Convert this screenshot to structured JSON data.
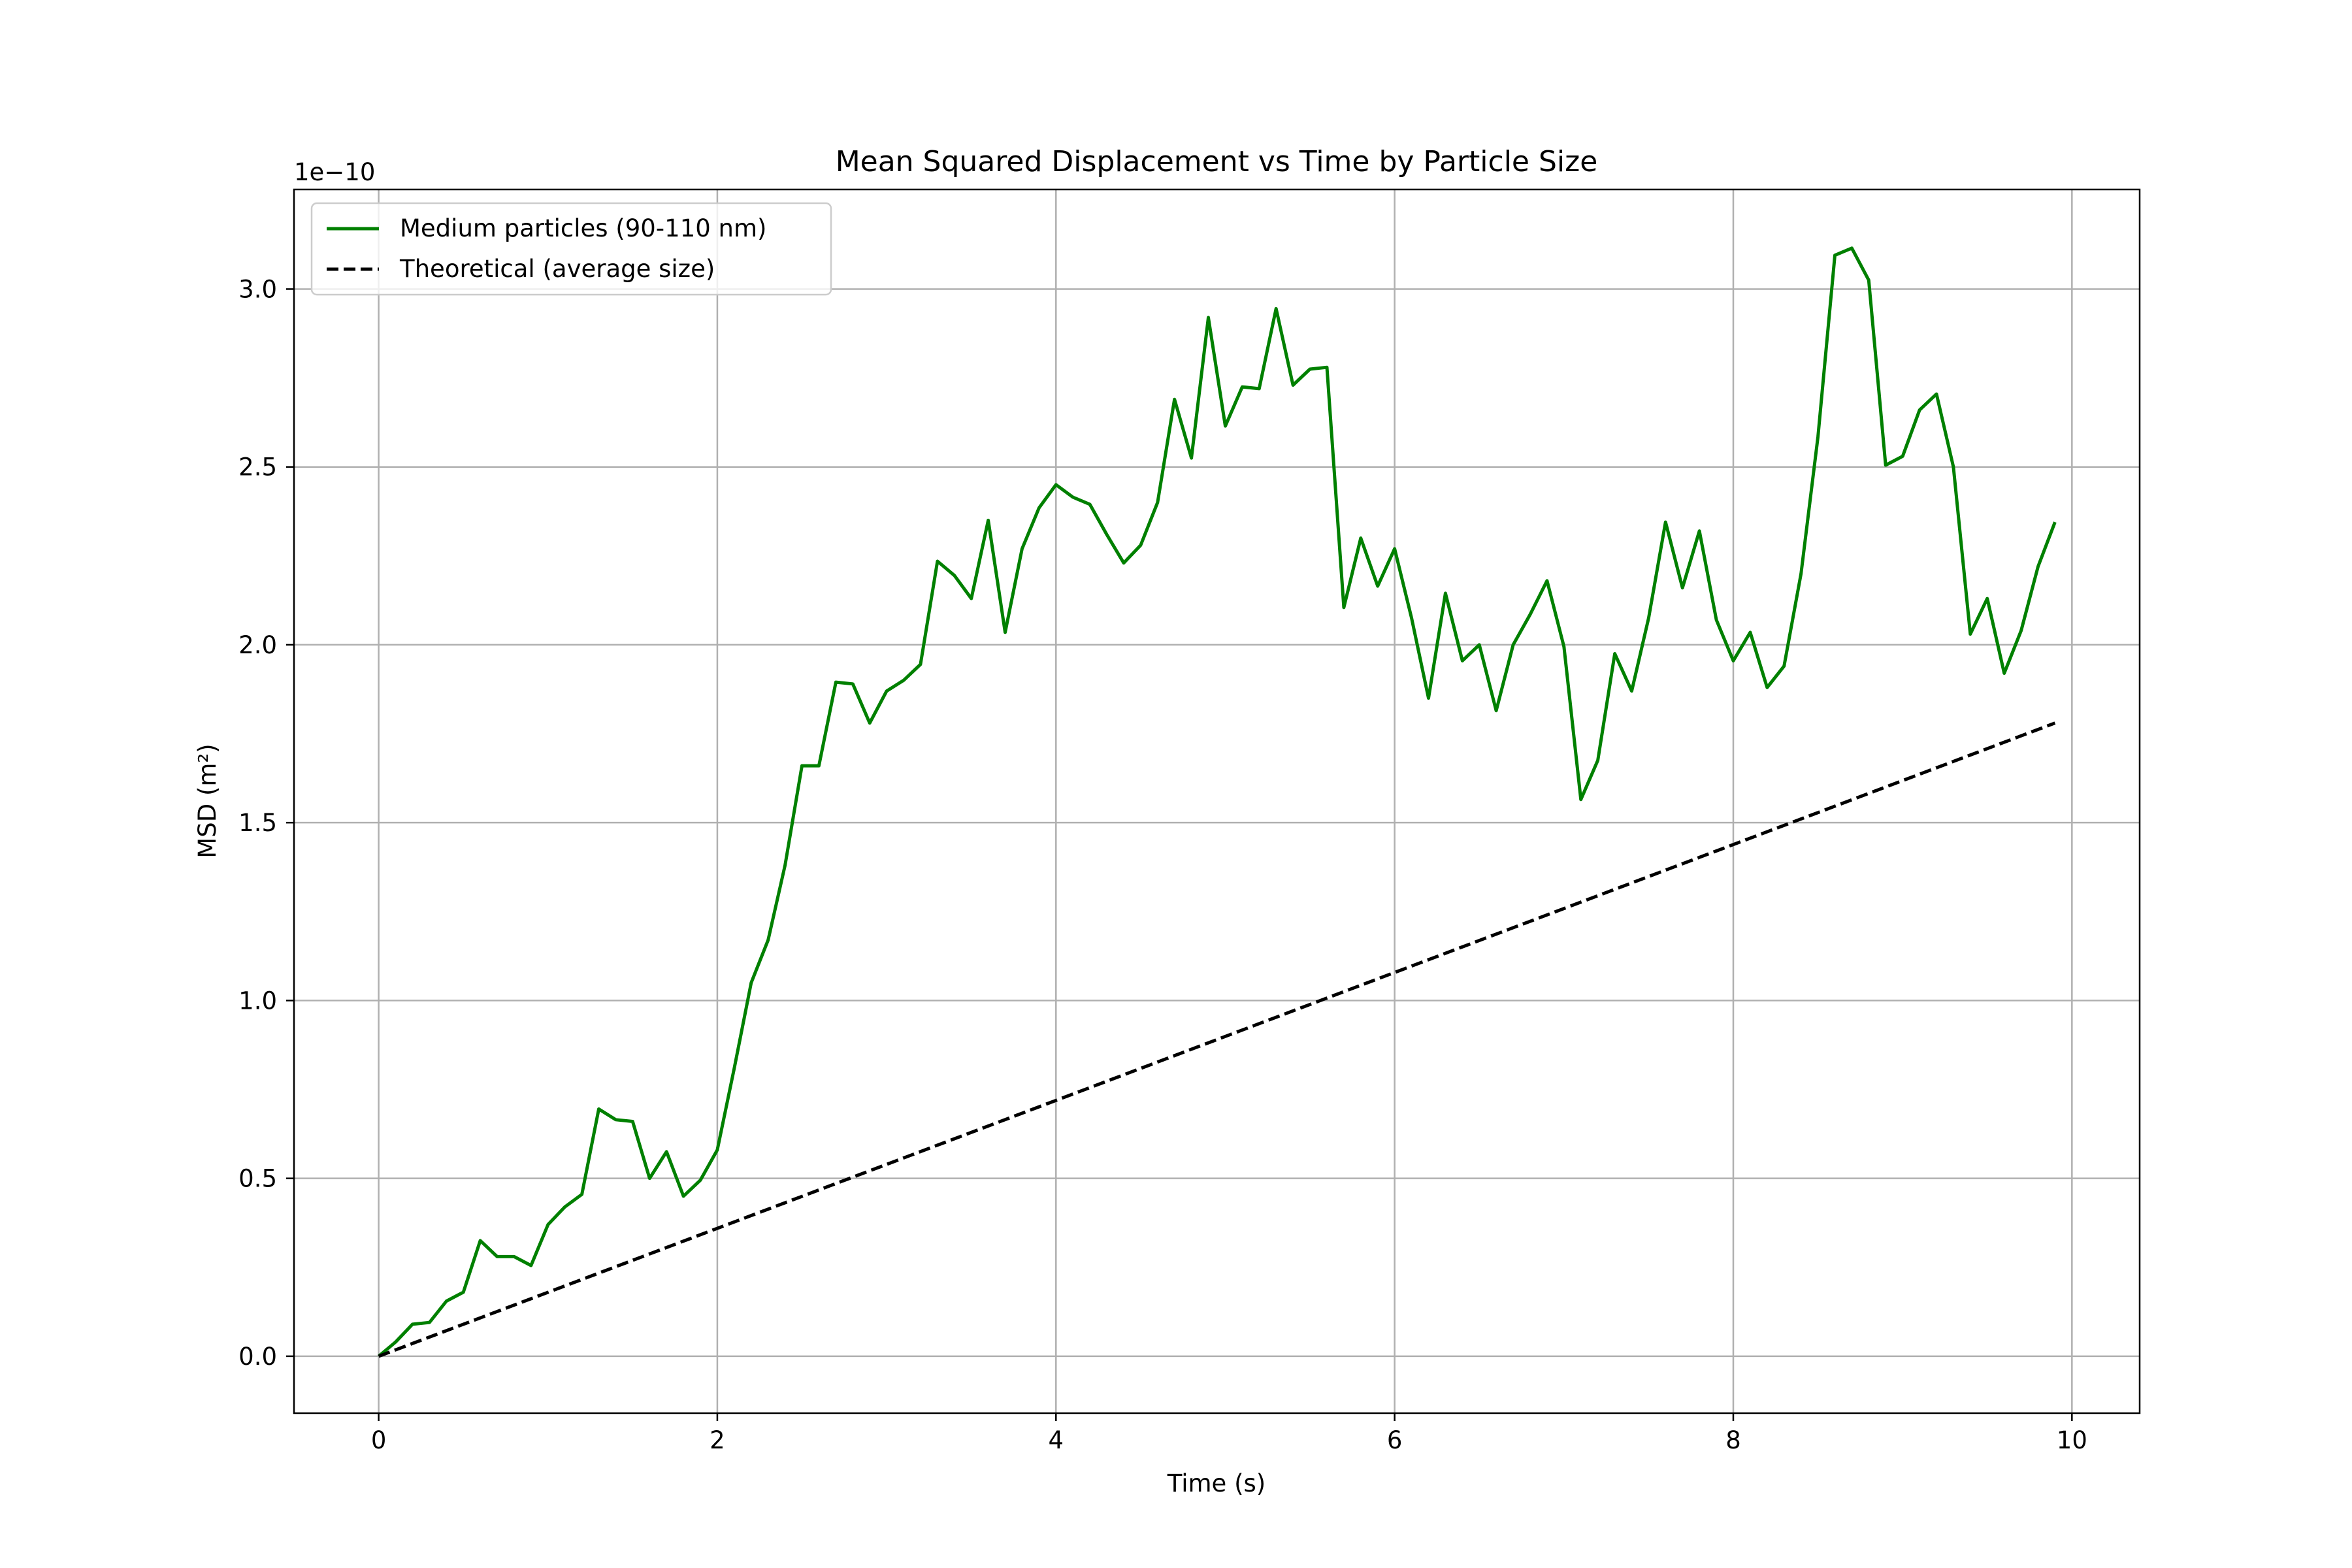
{
  "chart_data": {
    "type": "line",
    "title": "Mean Squared Displacement vs Time by Particle Size",
    "xlabel": "Time (s)",
    "ylabel": "MSD (m²)",
    "y_offset_label": "1e−10",
    "xlim": [
      -0.5,
      10.4
    ],
    "ylim": [
      -0.16,
      3.28
    ],
    "y_scale_factor": 1e-10,
    "xticks": [
      0,
      2,
      4,
      6,
      8,
      10
    ],
    "xtick_labels": [
      "0",
      "2",
      "4",
      "6",
      "8",
      "10"
    ],
    "yticks": [
      0,
      0.5,
      1.0,
      1.5,
      2.0,
      2.5,
      3.0
    ],
    "ytick_labels": [
      "0.0",
      "0.5",
      "1.0",
      "1.5",
      "2.0",
      "2.5",
      "3.0"
    ],
    "grid": true,
    "legend_position": "top-left",
    "series": [
      {
        "name": "Medium particles (90-110 nm)",
        "color": "#008000",
        "style": "solid",
        "x": [
          0,
          0.1,
          0.2,
          0.3,
          0.4,
          0.5,
          0.6,
          0.7,
          0.8,
          0.9,
          1.0,
          1.1,
          1.2,
          1.3,
          1.4,
          1.5,
          1.6,
          1.7,
          1.8,
          1.9,
          2.0,
          2.1,
          2.2,
          2.3,
          2.4,
          2.5,
          2.6,
          2.7,
          2.8,
          2.9,
          3.0,
          3.1,
          3.2,
          3.3,
          3.4,
          3.5,
          3.6,
          3.7,
          3.8,
          3.9,
          4.0,
          4.1,
          4.2,
          4.3,
          4.4,
          4.5,
          4.6,
          4.7,
          4.8,
          4.9,
          5.0,
          5.1,
          5.2,
          5.3,
          5.4,
          5.5,
          5.6,
          5.7,
          5.8,
          5.9,
          6.0,
          6.1,
          6.2,
          6.3,
          6.4,
          6.5,
          6.6,
          6.7,
          6.8,
          6.9,
          7.0,
          7.1,
          7.2,
          7.3,
          7.4,
          7.5,
          7.6,
          7.7,
          7.8,
          7.9,
          8.0,
          8.1,
          8.2,
          8.3,
          8.4,
          8.5,
          8.6,
          8.7,
          8.8,
          8.9,
          9.0,
          9.1,
          9.2,
          9.3,
          9.4,
          9.5,
          9.6,
          9.7,
          9.8,
          9.9
        ],
        "y": [
          0.0,
          0.04,
          0.09,
          0.095,
          0.155,
          0.18,
          0.325,
          0.28,
          0.28,
          0.255,
          0.37,
          0.42,
          0.455,
          0.695,
          0.665,
          0.66,
          0.5,
          0.575,
          0.45,
          0.495,
          0.58,
          0.81,
          1.05,
          1.17,
          1.38,
          1.66,
          1.66,
          1.895,
          1.89,
          1.78,
          1.87,
          1.9,
          1.945,
          2.235,
          2.195,
          2.13,
          2.35,
          2.035,
          2.27,
          2.385,
          2.45,
          2.415,
          2.395,
          2.31,
          2.23,
          2.28,
          2.4,
          2.69,
          2.525,
          2.92,
          2.615,
          2.725,
          2.72,
          2.945,
          2.73,
          2.775,
          2.78,
          2.105,
          2.3,
          2.165,
          2.27,
          2.075,
          1.85,
          2.145,
          1.955,
          2.0,
          1.815,
          2.0,
          2.085,
          2.18,
          1.995,
          1.565,
          1.675,
          1.975,
          1.87,
          2.075,
          2.345,
          2.16,
          2.32,
          2.07,
          1.955,
          2.035,
          1.88,
          1.94,
          2.2,
          2.585,
          3.095,
          3.115,
          3.025,
          2.505,
          2.53,
          2.66,
          2.705,
          2.5,
          2.03,
          2.13,
          1.92,
          2.04,
          2.22,
          2.345
        ]
      },
      {
        "name": "Theoretical (average size)",
        "color": "#000000",
        "style": "dashed",
        "x": [
          0,
          9.9
        ],
        "y": [
          0.0,
          1.78
        ]
      }
    ]
  }
}
